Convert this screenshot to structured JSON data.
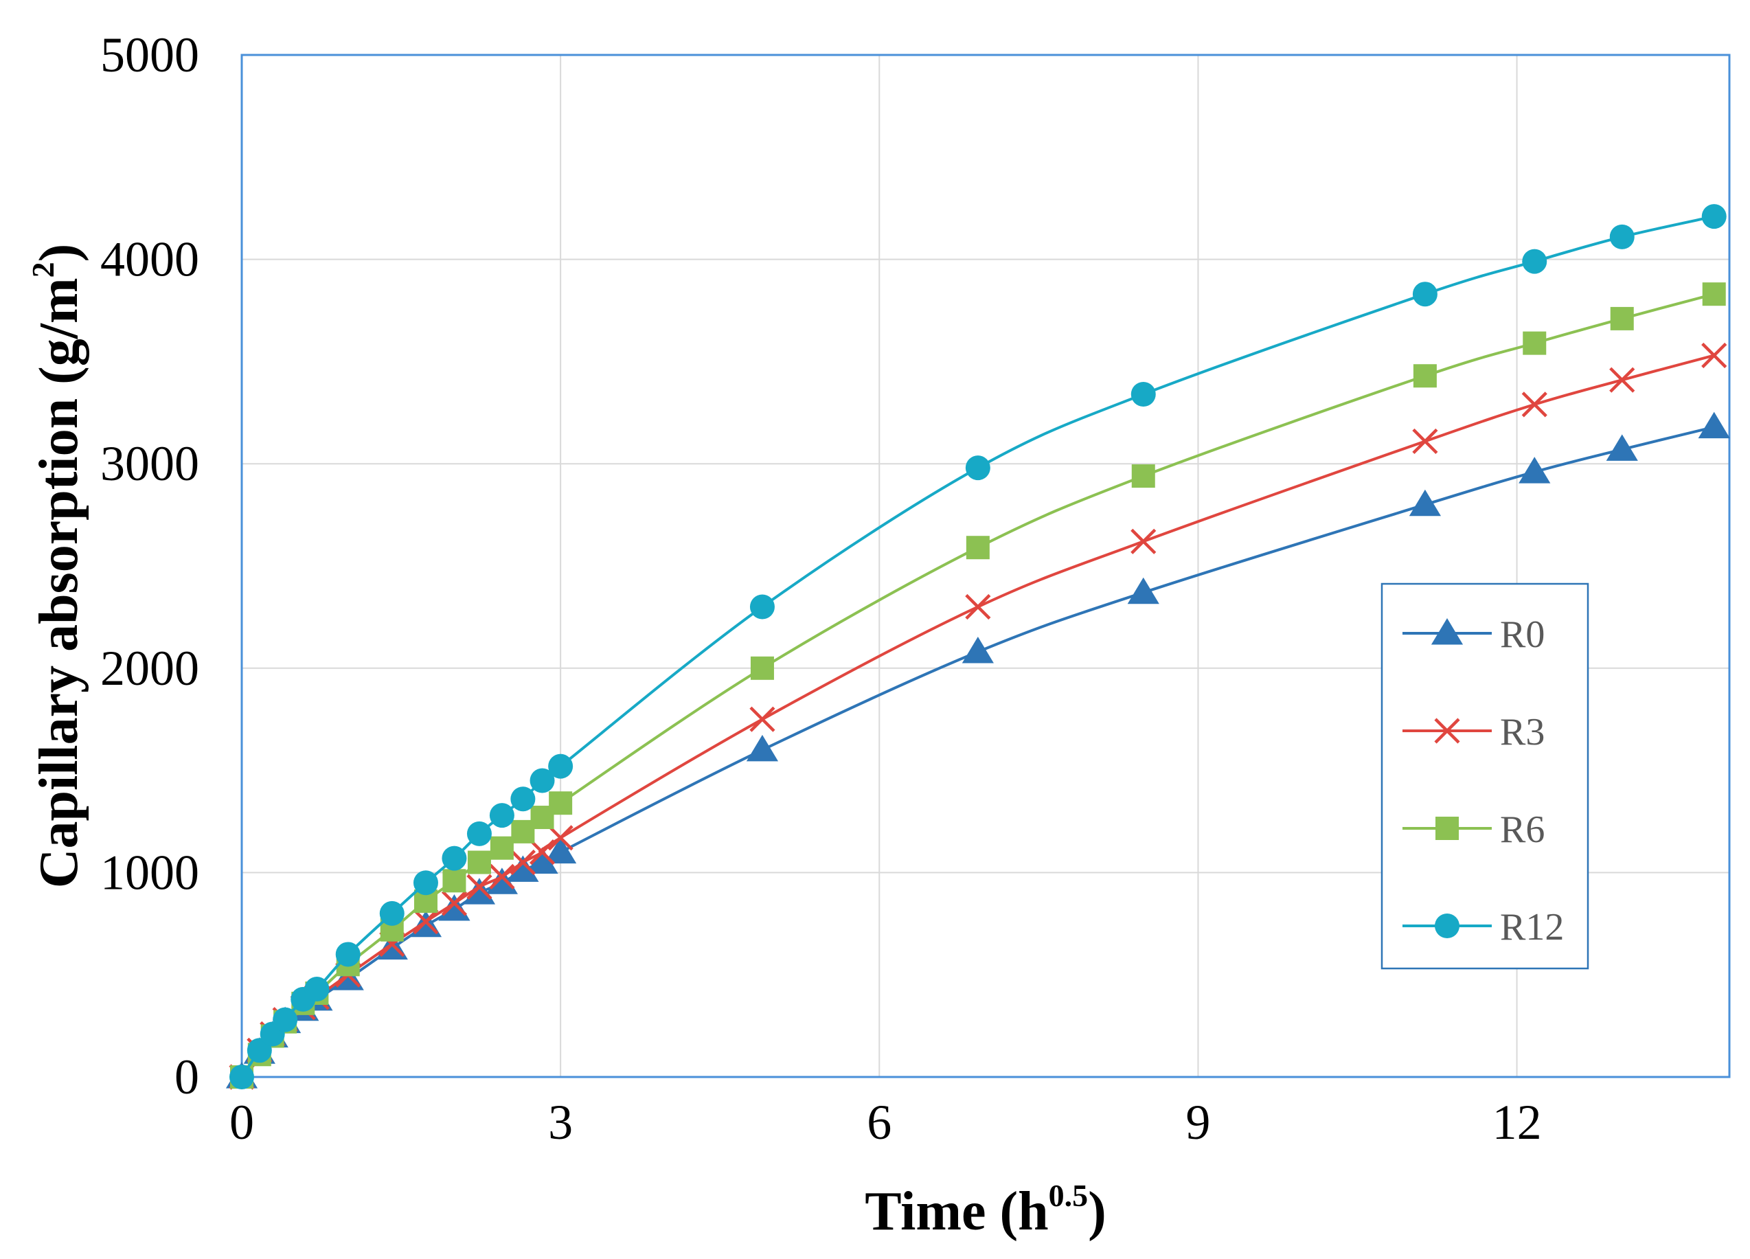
{
  "chart_data": {
    "type": "line",
    "title": "",
    "xlabel": "Time (h0.5)",
    "xlabel_parts": {
      "base": "Time (h",
      "sup": "0.5",
      "close": ")"
    },
    "ylabel": "Capillary absorption (g/m2)",
    "ylabel_parts": {
      "base": "Capillary absorption (g/m",
      "sup": "2",
      "close": ")"
    },
    "xlim": [
      0,
      14
    ],
    "ylim": [
      0,
      5000
    ],
    "xticks": [
      0,
      3,
      6,
      9,
      12
    ],
    "yticks": [
      0,
      1000,
      2000,
      3000,
      4000,
      5000
    ],
    "grid": true,
    "legend_position": "right",
    "x": [
      0,
      0.167,
      0.289,
      0.408,
      0.577,
      0.707,
      1,
      1.414,
      1.732,
      2,
      2.236,
      2.449,
      2.646,
      2.828,
      3,
      4.899,
      6.928,
      8.485,
      11.136,
      12.166,
      12.99,
      13.856
    ],
    "series": [
      {
        "name": "R0",
        "marker": "triangle",
        "color": "#2E75B6",
        "values": [
          0,
          120,
          200,
          270,
          330,
          380,
          480,
          630,
          740,
          820,
          900,
          950,
          1010,
          1050,
          1100,
          1600,
          2080,
          2370,
          2800,
          2960,
          3070,
          3180
        ]
      },
      {
        "name": "R3",
        "marker": "x",
        "color": "#E0463F",
        "values": [
          0,
          130,
          210,
          280,
          340,
          390,
          500,
          650,
          760,
          850,
          930,
          980,
          1050,
          1100,
          1170,
          1750,
          2300,
          2620,
          3110,
          3290,
          3410,
          3530
        ]
      },
      {
        "name": "R6",
        "marker": "square",
        "color": "#8CC152",
        "values": [
          0,
          110,
          200,
          270,
          360,
          410,
          550,
          720,
          860,
          960,
          1050,
          1120,
          1200,
          1270,
          1340,
          2000,
          2590,
          2940,
          3430,
          3590,
          3710,
          3830
        ]
      },
      {
        "name": "R12",
        "marker": "circle",
        "color": "#17A9C6",
        "values": [
          0,
          130,
          210,
          280,
          380,
          430,
          600,
          800,
          950,
          1070,
          1190,
          1280,
          1360,
          1450,
          1520,
          2300,
          2980,
          3340,
          3830,
          3990,
          4110,
          4210
        ]
      }
    ]
  },
  "colors": {
    "plot_border": "#4A90D9",
    "grid": "#D9D9D9",
    "legend_border": "#2E75B6"
  }
}
